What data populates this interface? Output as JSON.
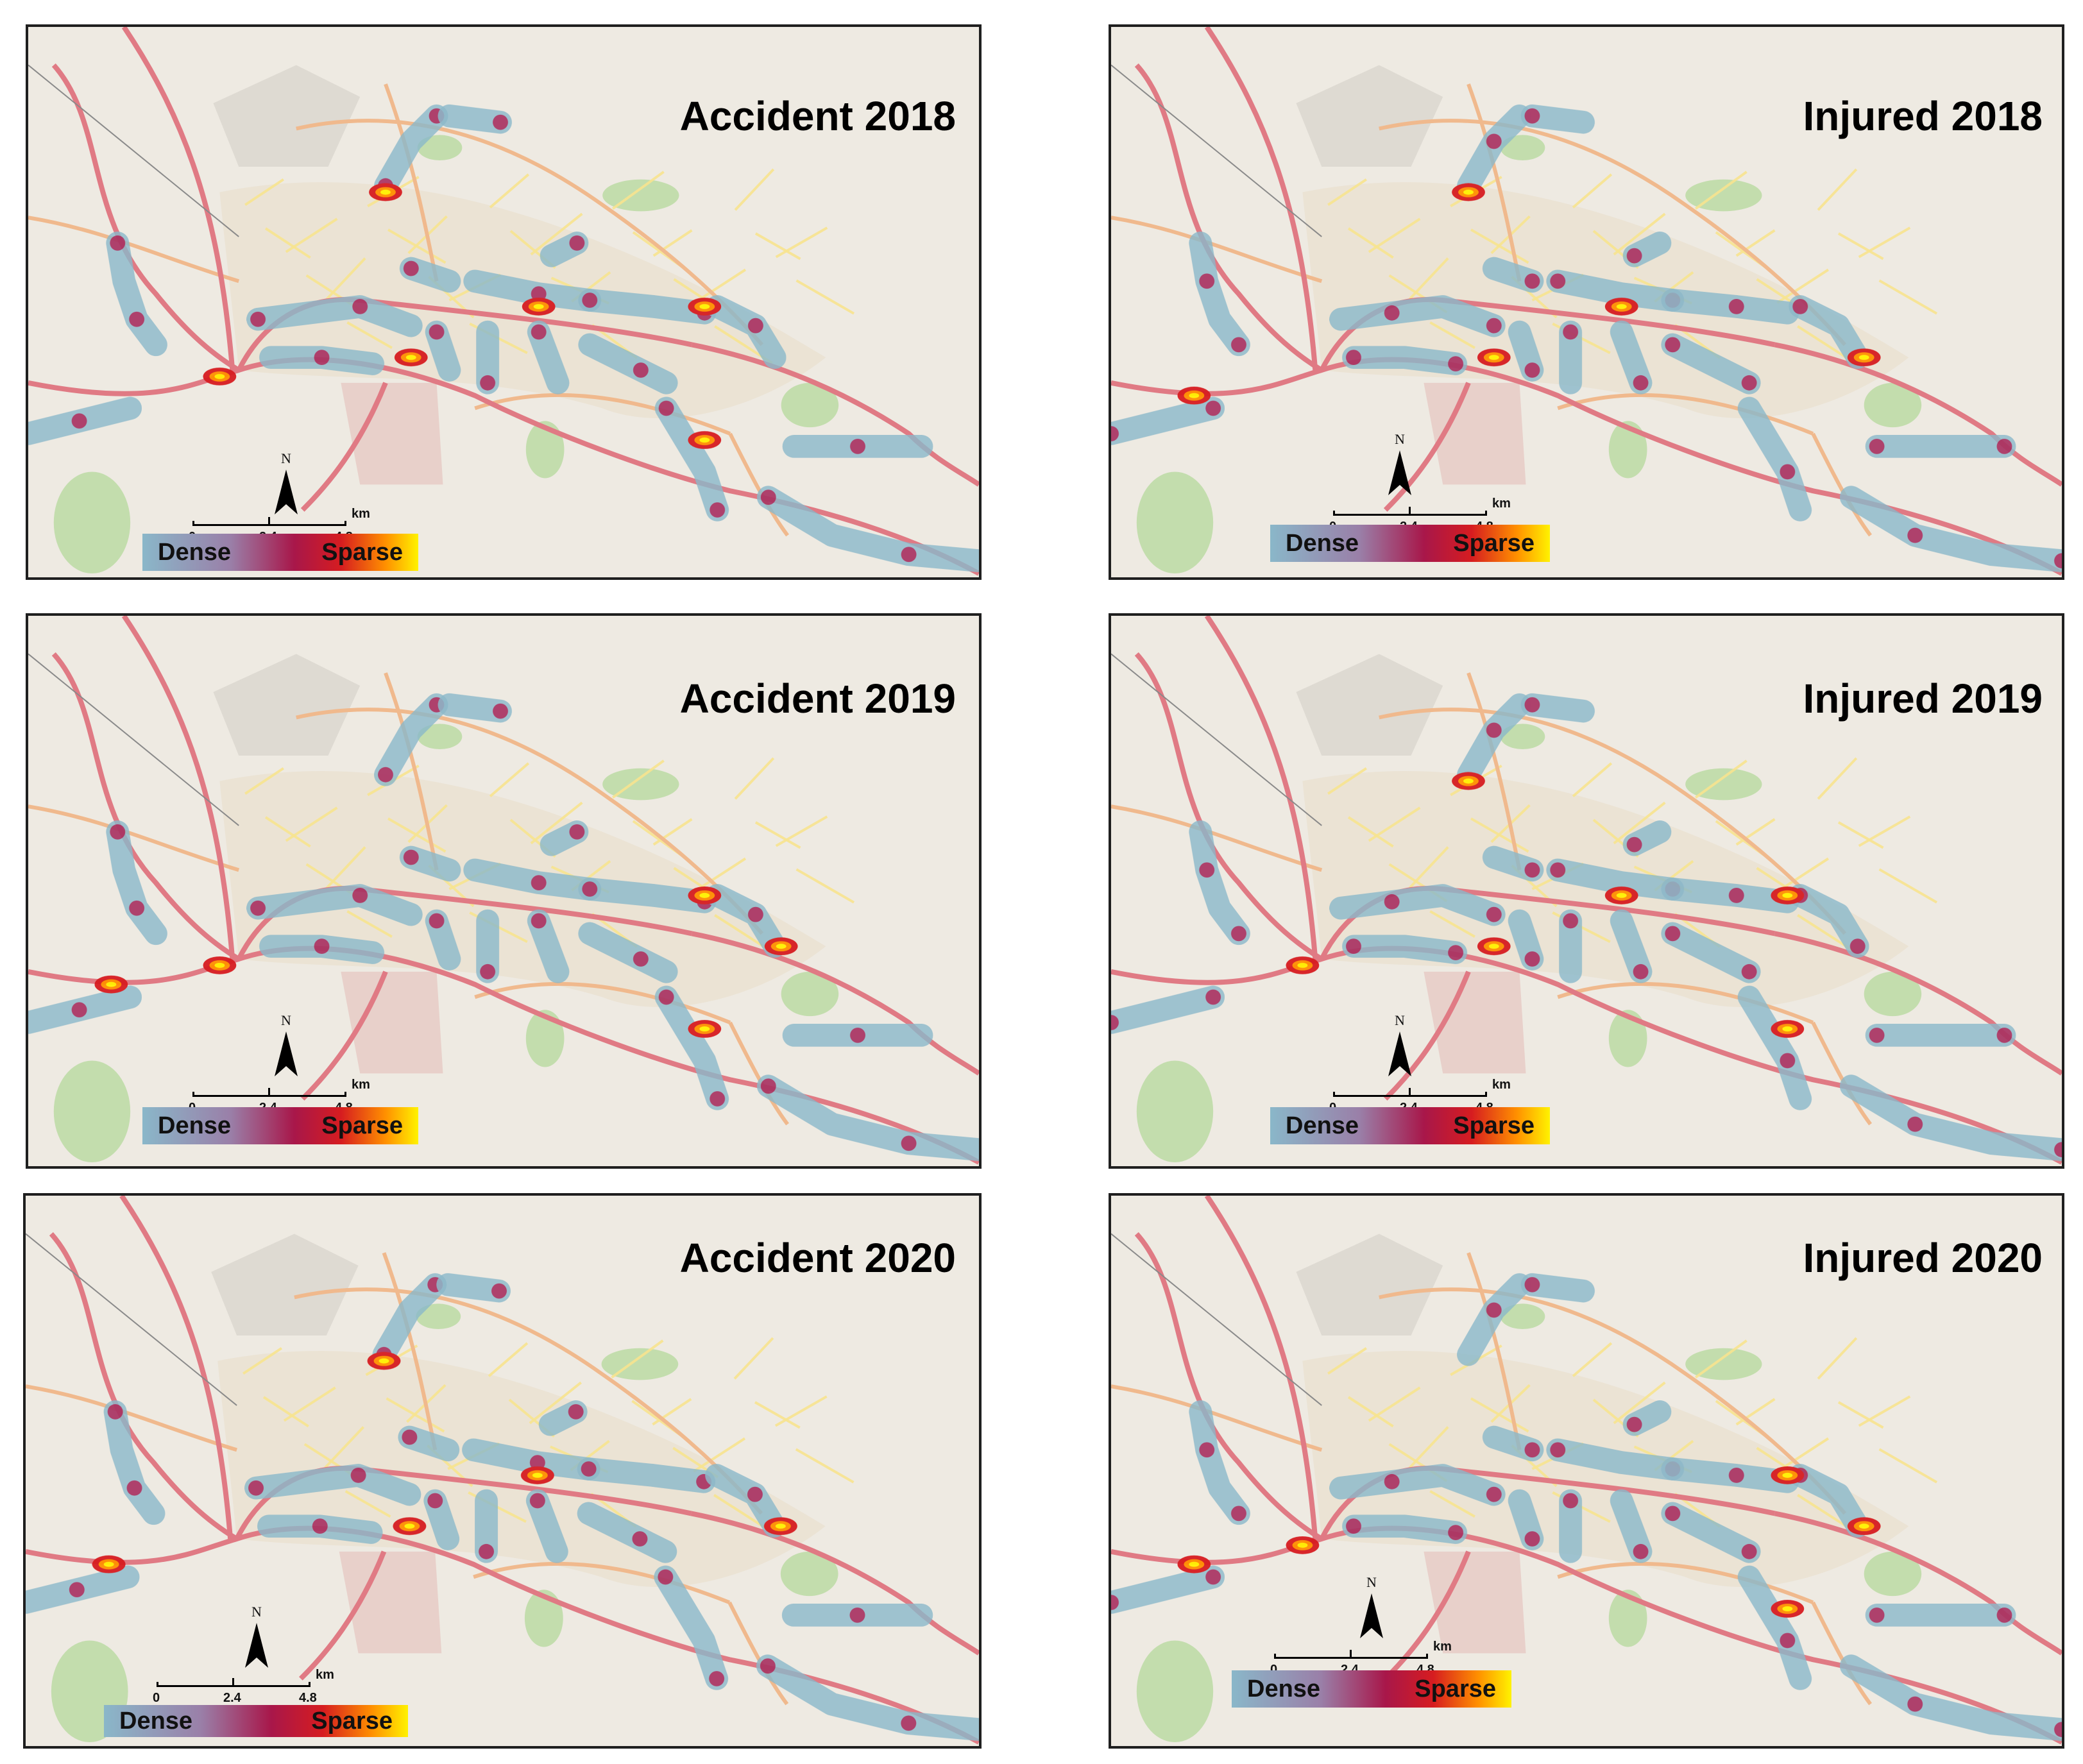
{
  "panels": [
    {
      "id": "accident-2018",
      "title": "Accident 2018"
    },
    {
      "id": "injured-2018",
      "title": "Injured 2018"
    },
    {
      "id": "accident-2019",
      "title": "Accident 2019"
    },
    {
      "id": "injured-2019",
      "title": "Injured 2019"
    },
    {
      "id": "accident-2020",
      "title": "Accident 2020"
    },
    {
      "id": "injured-2020",
      "title": "Injured 2020"
    }
  ],
  "legend": {
    "dense_label": "Dense",
    "sparse_label": "Sparse",
    "colors": [
      "#8ab7c9",
      "#9a7fa8",
      "#a8174a",
      "#d61c20",
      "#ff8f00",
      "#fff200"
    ]
  },
  "scale_bar": {
    "tick_0": "0",
    "tick_1": "2.4",
    "tick_2": "4.8",
    "unit": "km"
  },
  "north_arrow": {
    "label": "N"
  },
  "colors": {
    "map_background": "#eeeae2",
    "major_road": "#e07a84",
    "secondary_road": "#f0b98d",
    "minor_road": "#f7e38f",
    "park": "#b8d9a0",
    "cemetery": "#e6c4c1",
    "hotspot_base": "#8ab7c9"
  }
}
